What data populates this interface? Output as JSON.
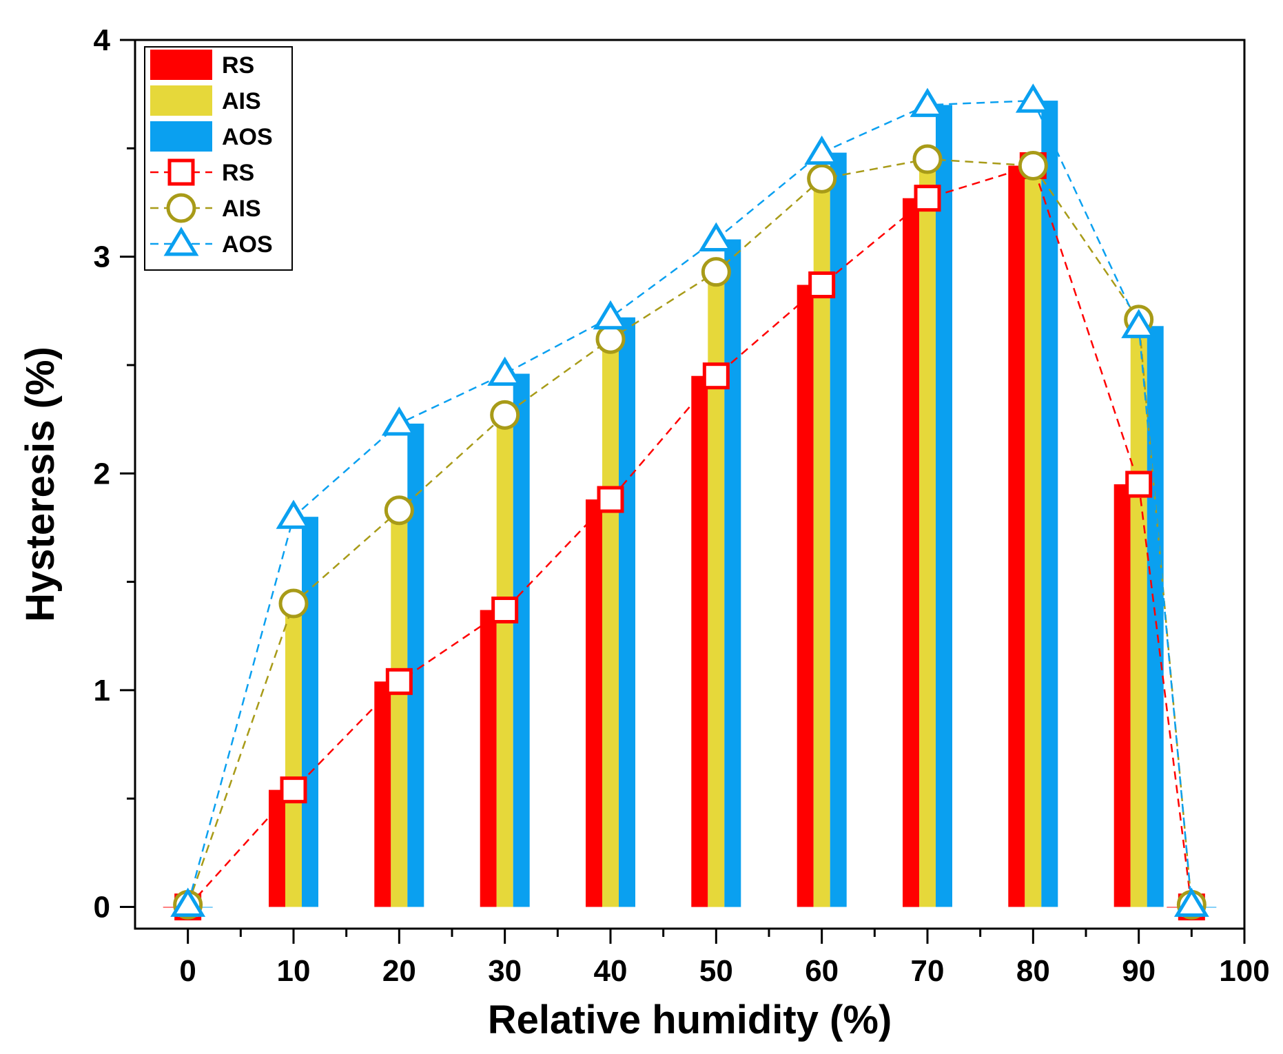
{
  "chart_data": {
    "type": "bar",
    "xlabel": "Relative humidity (%)",
    "ylabel": "Hysteresis (%)",
    "xlim": [
      -5,
      100
    ],
    "ylim": [
      -0.1,
      4
    ],
    "x_ticks": [
      0,
      10,
      20,
      30,
      40,
      50,
      60,
      70,
      80,
      90,
      100
    ],
    "x_tick_labels": [
      "0",
      "10",
      "20",
      "30",
      "40",
      "50",
      "60",
      "70",
      "80",
      "90",
      "100"
    ],
    "y_ticks": [
      0,
      1,
      2,
      3,
      4
    ],
    "y_tick_labels": [
      "0",
      "1",
      "2",
      "3",
      "4"
    ],
    "x": [
      0,
      10,
      20,
      30,
      40,
      50,
      60,
      70,
      80,
      90,
      95
    ],
    "bar_series": [
      {
        "name": "RS",
        "color": "#ff0000",
        "values": [
          0,
          0.54,
          1.04,
          1.37,
          1.88,
          2.45,
          2.87,
          3.27,
          3.42,
          1.95,
          0
        ]
      },
      {
        "name": "AIS",
        "color": "#e6d83a",
        "values": [
          0.03,
          1.4,
          1.83,
          2.27,
          2.62,
          2.93,
          3.36,
          3.45,
          3.42,
          2.71,
          0.02
        ]
      },
      {
        "name": "AOS",
        "color": "#0aa0f0",
        "values": [
          0,
          1.8,
          2.23,
          2.46,
          2.72,
          3.08,
          3.48,
          3.7,
          3.72,
          2.68,
          0
        ]
      }
    ],
    "line_series": [
      {
        "name": "RS",
        "marker": "square",
        "color": "#ff0000",
        "values": [
          0,
          0.54,
          1.04,
          1.37,
          1.88,
          2.45,
          2.87,
          3.27,
          3.42,
          1.95,
          0
        ]
      },
      {
        "name": "AIS",
        "marker": "circle",
        "color": "#a89b18",
        "values": [
          0.01,
          1.4,
          1.83,
          2.27,
          2.62,
          2.93,
          3.36,
          3.45,
          3.42,
          2.71,
          0.01
        ]
      },
      {
        "name": "AOS",
        "marker": "triangle",
        "color": "#0aa0f0",
        "values": [
          0.01,
          1.8,
          2.23,
          2.46,
          2.72,
          3.08,
          3.48,
          3.7,
          3.72,
          2.68,
          0.01
        ]
      }
    ],
    "legend": {
      "position": "top-left",
      "entries": [
        "RS",
        "AIS",
        "AOS",
        "RS",
        "AIS",
        "AOS"
      ]
    }
  }
}
